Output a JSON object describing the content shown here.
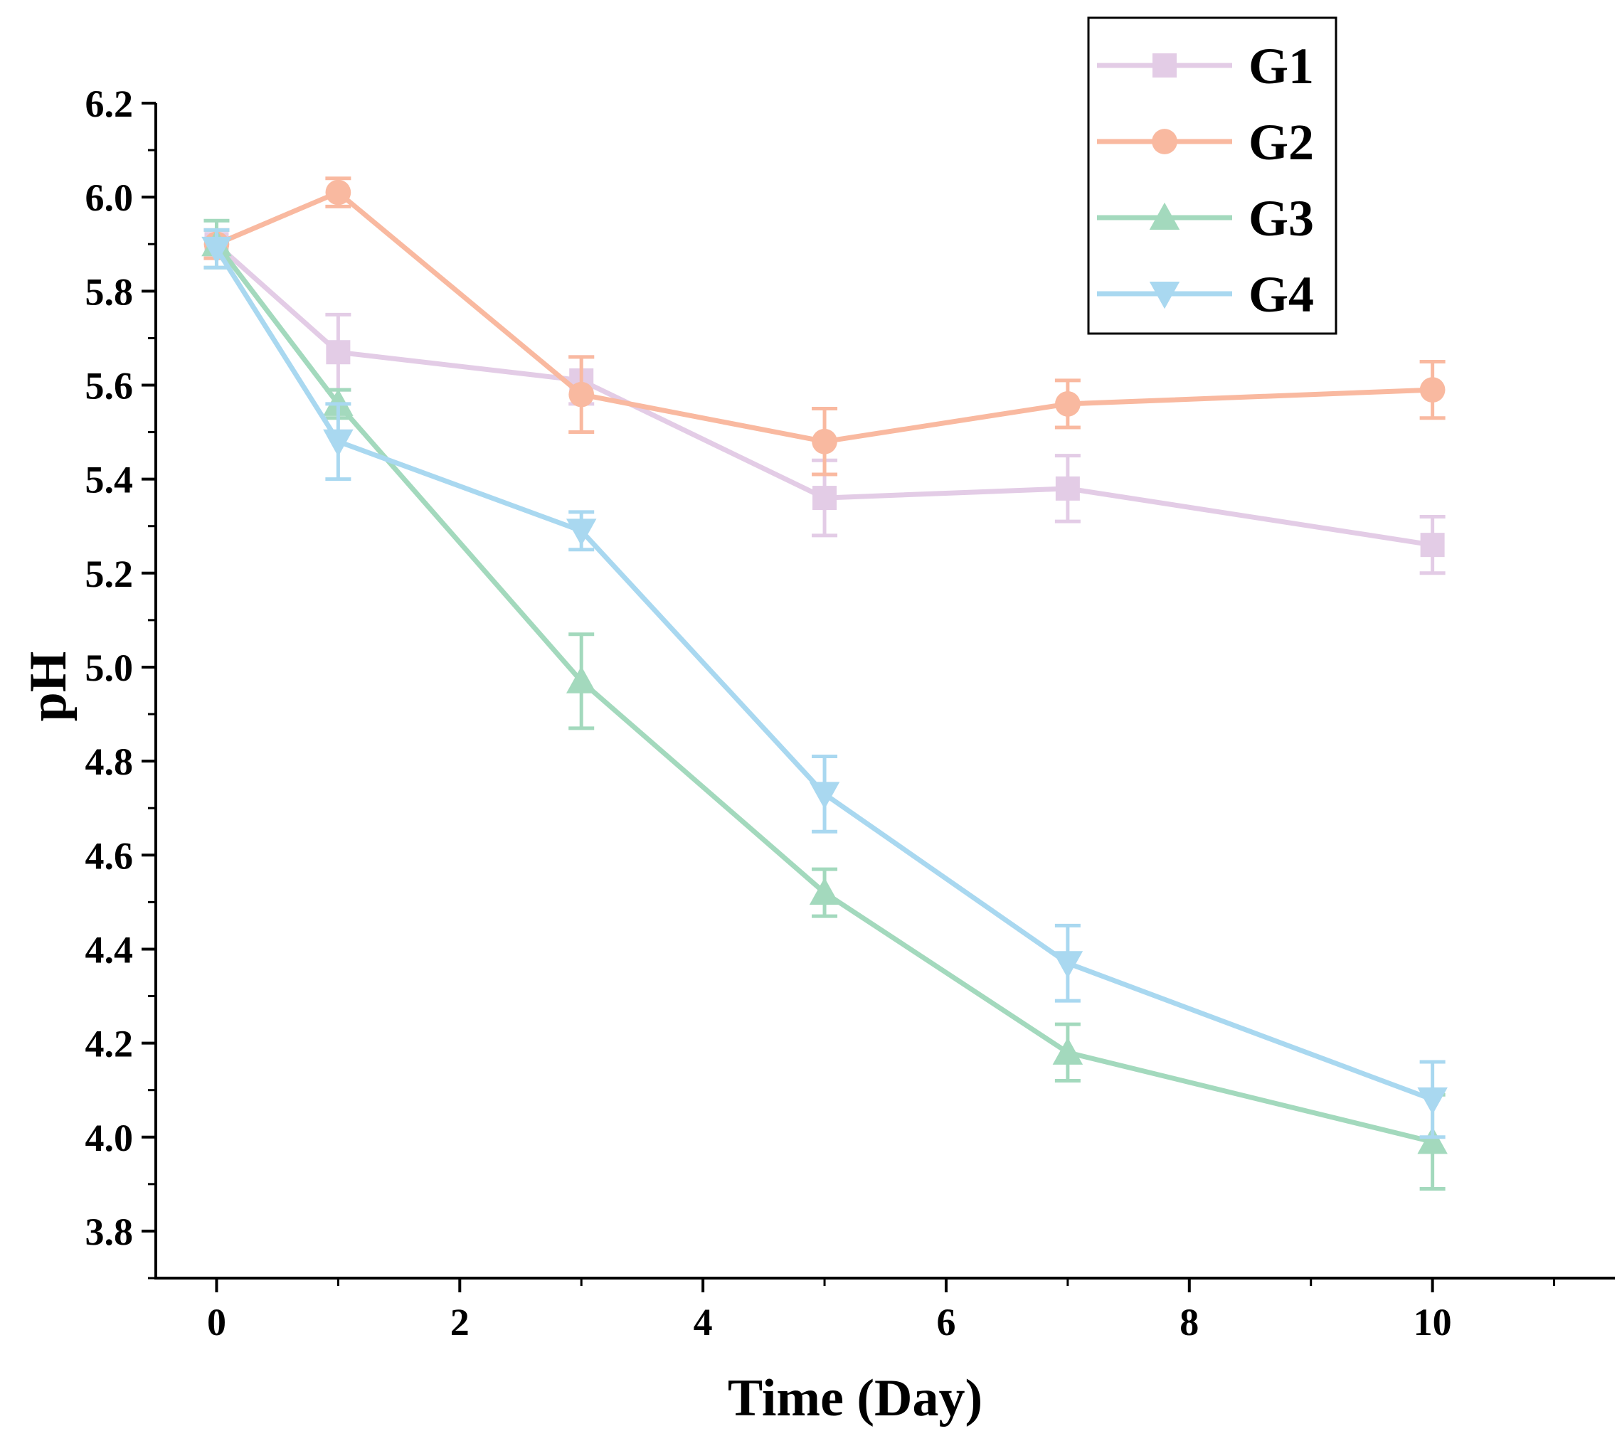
{
  "chart_data": {
    "type": "line",
    "title": "",
    "xlabel": "Time (Day)",
    "ylabel": "pH",
    "xlim": [
      -0.5,
      11.5
    ],
    "ylim": [
      3.7,
      6.2
    ],
    "x_ticks": [
      0,
      2,
      4,
      6,
      8,
      10
    ],
    "x_tick_labels": [
      "0",
      "2",
      "4",
      "6",
      "8",
      "10"
    ],
    "y_ticks": [
      3.8,
      4.0,
      4.2,
      4.4,
      4.6,
      4.8,
      5.0,
      5.2,
      5.4,
      5.6,
      5.8,
      6.0,
      6.2
    ],
    "y_tick_labels": [
      "3.8",
      "4.0",
      "4.2",
      "4.4",
      "4.6",
      "4.8",
      "5.0",
      "5.2",
      "5.4",
      "5.6",
      "5.8",
      "6.0",
      "6.2"
    ],
    "grid": false,
    "legend_position": "top-right",
    "x": [
      0,
      1,
      3,
      5,
      7,
      10
    ],
    "series": [
      {
        "name": "G1",
        "color": "#e3cce6",
        "marker": "square",
        "values": [
          5.9,
          5.67,
          5.61,
          5.36,
          5.38,
          5.26
        ],
        "errors": [
          0.03,
          0.08,
          0.05,
          0.08,
          0.07,
          0.06
        ]
      },
      {
        "name": "G2",
        "color": "#f9b9a0",
        "marker": "circle",
        "values": [
          5.9,
          6.01,
          5.58,
          5.48,
          5.56,
          5.59
        ],
        "errors": [
          0.03,
          0.03,
          0.08,
          0.07,
          0.05,
          0.06
        ]
      },
      {
        "name": "G3",
        "color": "#a3d9bd",
        "marker": "triangle-up",
        "values": [
          5.9,
          5.56,
          4.97,
          4.52,
          4.18,
          3.99
        ],
        "errors": [
          0.05,
          0.03,
          0.1,
          0.05,
          0.06,
          0.1
        ]
      },
      {
        "name": "G4",
        "color": "#a9d8f0",
        "marker": "triangle-down",
        "values": [
          5.89,
          5.48,
          5.29,
          4.73,
          4.37,
          4.08
        ],
        "errors": [
          0.04,
          0.08,
          0.04,
          0.08,
          0.08,
          0.08
        ]
      }
    ]
  }
}
